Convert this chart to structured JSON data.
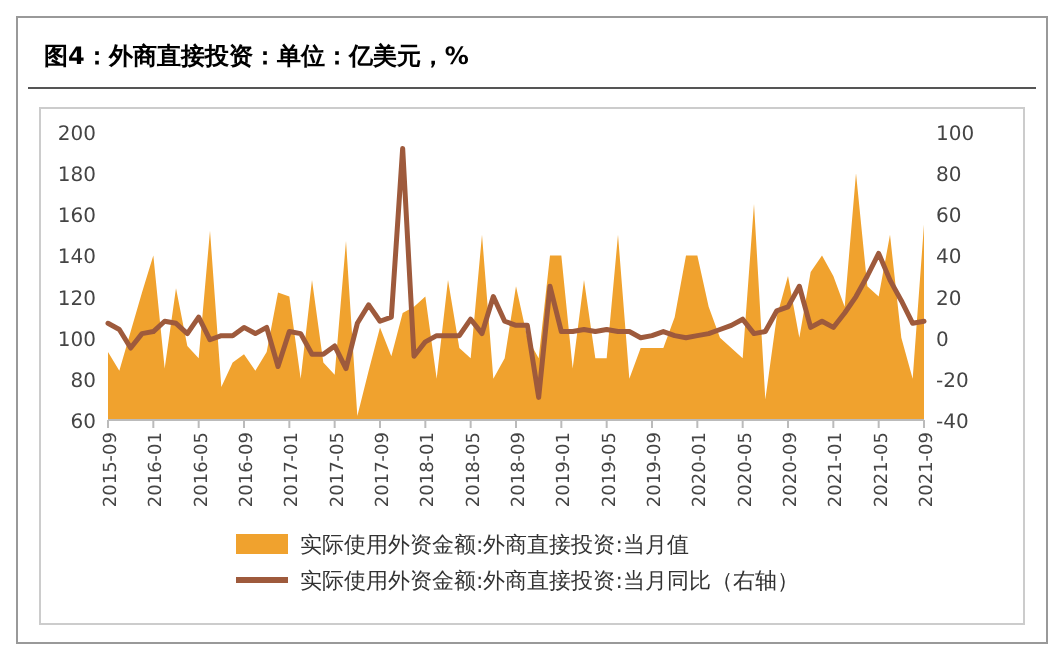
{
  "chart_data": {
    "type": "area",
    "title": "图4：外商直接投资：单位：亿美元，%",
    "categories": [
      "2015-09",
      null,
      null,
      null,
      "2016-01",
      null,
      null,
      null,
      "2016-05",
      null,
      null,
      null,
      "2016-09",
      null,
      null,
      null,
      "2017-01",
      null,
      null,
      null,
      "2017-05",
      null,
      null,
      null,
      "2017-09",
      null,
      null,
      null,
      "2018-01",
      null,
      null,
      null,
      "2018-05",
      null,
      null,
      null,
      "2018-09",
      null,
      null,
      null,
      "2019-01",
      null,
      null,
      null,
      "2019-05",
      null,
      null,
      null,
      "2019-09",
      null,
      null,
      null,
      "2020-01",
      null,
      null,
      null,
      "2020-05",
      null,
      null,
      null,
      "2020-09",
      null,
      null,
      null,
      "2021-01",
      null,
      null,
      null,
      "2021-05",
      null,
      null,
      null,
      "2021-09"
    ],
    "series": [
      {
        "name": "实际使用外资金额:外商直接投资:当月值",
        "color": "#f0a22e",
        "values": [
          93,
          84,
          103,
          122,
          140,
          85,
          124,
          96,
          90,
          152,
          76,
          88,
          92,
          84,
          93,
          122,
          120,
          80,
          128,
          88,
          82,
          147,
          62,
          84,
          105,
          91,
          112,
          115,
          120,
          80,
          128,
          95,
          90,
          150,
          80,
          90,
          125,
          100,
          90,
          140,
          140,
          85,
          128,
          90,
          90,
          150,
          80,
          95,
          95,
          95,
          110,
          140,
          140,
          115,
          100,
          95,
          90,
          165,
          70,
          110,
          130,
          100,
          132,
          140,
          130,
          115,
          180,
          125,
          120,
          150,
          100,
          80,
          155
        ]
      },
      {
        "name": "实际使用外资金额:外商直接投资:当月同比（右轴）",
        "type": "line",
        "axis": "y2",
        "color": "#9e5a3c",
        "values": [
          7,
          4,
          -5,
          2,
          3,
          8,
          7,
          2,
          10,
          -1,
          1,
          1,
          5,
          2,
          5,
          -14,
          3,
          2,
          -8,
          -8,
          -4,
          -15,
          7,
          16,
          8,
          10,
          92,
          -9,
          -2,
          1,
          1,
          1,
          9,
          2,
          20,
          8,
          6,
          6,
          -29,
          25,
          3,
          3,
          4,
          3,
          4,
          3,
          3,
          0,
          1,
          3,
          1,
          0,
          1,
          2,
          4,
          6,
          9,
          2,
          3,
          13,
          15,
          25,
          5,
          8,
          5,
          12,
          20,
          30,
          41,
          28,
          18,
          7,
          8
        ]
      }
    ],
    "ylim": [
      60,
      200
    ],
    "yticks": [
      60,
      80,
      100,
      120,
      140,
      160,
      180,
      200
    ],
    "y2lim": [
      -40,
      100
    ],
    "y2ticks": [
      -40,
      -20,
      0,
      20,
      40,
      60,
      80,
      100
    ],
    "legend": "bottom",
    "grid": false
  }
}
